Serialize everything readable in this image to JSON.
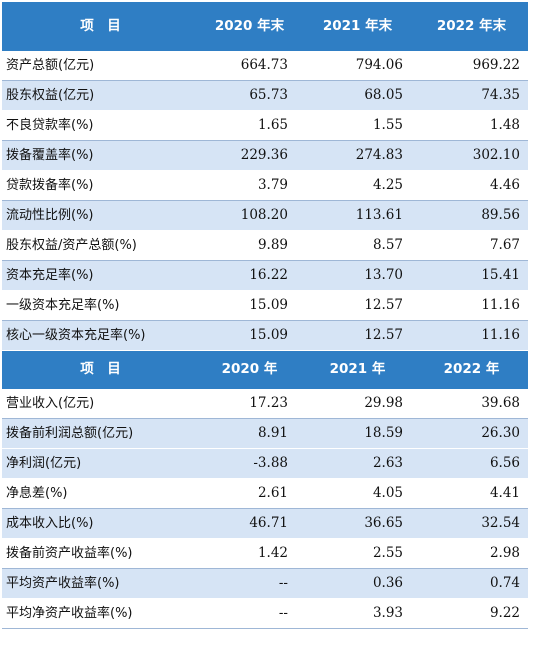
{
  "table1": {
    "headers": [
      "项　目",
      "2020 年末",
      "2021 年末",
      "2022 年末"
    ],
    "rows": [
      {
        "label": "资产总额(亿元)",
        "values": [
          "664.73",
          "794.06",
          "969.22"
        ]
      },
      {
        "label": "股东权益(亿元)",
        "values": [
          "65.73",
          "68.05",
          "74.35"
        ]
      },
      {
        "label": "不良贷款率(%)",
        "values": [
          "1.65",
          "1.55",
          "1.48"
        ]
      },
      {
        "label": "拨备覆盖率(%)",
        "values": [
          "229.36",
          "274.83",
          "302.10"
        ]
      },
      {
        "label": "贷款拨备率(%)",
        "values": [
          "3.79",
          "4.25",
          "4.46"
        ]
      },
      {
        "label": "流动性比例(%)",
        "values": [
          "108.20",
          "113.61",
          "89.56"
        ]
      },
      {
        "label": "股东权益/资产总额(%)",
        "values": [
          "9.89",
          "8.57",
          "7.67"
        ]
      },
      {
        "label": "资本充足率(%)",
        "values": [
          "16.22",
          "13.70",
          "15.41"
        ]
      },
      {
        "label": "一级资本充足率(%)",
        "values": [
          "15.09",
          "12.57",
          "11.16"
        ]
      },
      {
        "label": "核心一级资本充足率(%)",
        "values": [
          "15.09",
          "12.57",
          "11.16"
        ]
      }
    ]
  },
  "table2": {
    "headers": [
      "项　目",
      "2020 年",
      "2021 年",
      "2022 年"
    ],
    "rows": [
      {
        "label": "营业收入(亿元)",
        "values": [
          "17.23",
          "29.98",
          "39.68"
        ]
      },
      {
        "label": "拨备前利润总额(亿元)",
        "values": [
          "8.91",
          "18.59",
          "26.30"
        ]
      },
      {
        "label": "净利润(亿元)",
        "values": [
          "-3.88",
          "2.63",
          "6.56"
        ]
      },
      {
        "label": "净息差(%)",
        "values": [
          "2.61",
          "4.05",
          "4.41"
        ]
      },
      {
        "label": "成本收入比(%)",
        "values": [
          "46.71",
          "36.65",
          "32.54"
        ]
      },
      {
        "label": "拨备前资产收益率(%)",
        "values": [
          "1.42",
          "2.55",
          "2.98"
        ]
      },
      {
        "label": "平均资产收益率(%)",
        "values": [
          "--",
          "0.36",
          "0.74"
        ]
      },
      {
        "label": "平均净资产收益率(%)",
        "values": [
          "--",
          "3.93",
          "9.22"
        ]
      }
    ]
  }
}
